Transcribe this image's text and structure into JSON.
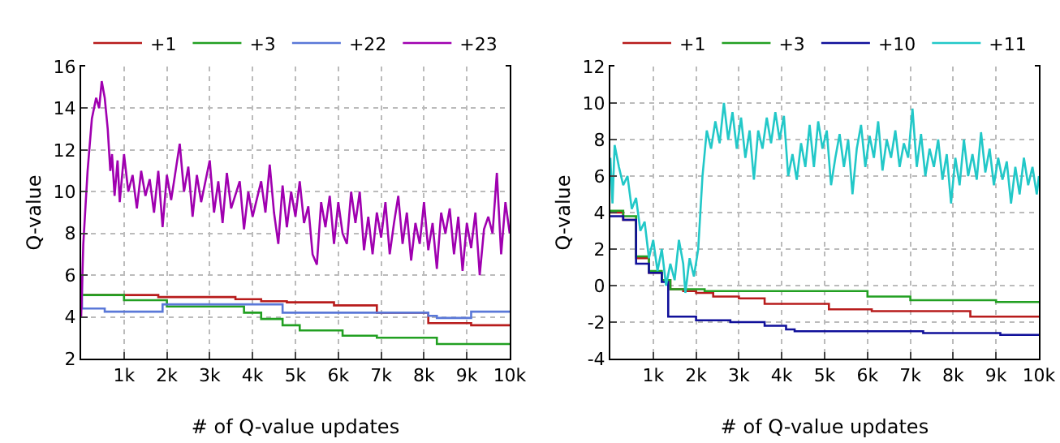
{
  "chart_data": [
    {
      "type": "line",
      "xlabel": "# of Q-value updates",
      "ylabel": "Q-value",
      "xlim": [
        0,
        10000
      ],
      "ylim": [
        2,
        16
      ],
      "xticks": [
        {
          "value": 1000,
          "label": "1k"
        },
        {
          "value": 2000,
          "label": "2k"
        },
        {
          "value": 3000,
          "label": "3k"
        },
        {
          "value": 4000,
          "label": "4k"
        },
        {
          "value": 5000,
          "label": "5k"
        },
        {
          "value": 6000,
          "label": "6k"
        },
        {
          "value": 7000,
          "label": "7k"
        },
        {
          "value": 8000,
          "label": "8k"
        },
        {
          "value": 9000,
          "label": "9k"
        },
        {
          "value": 10000,
          "label": "10k"
        }
      ],
      "yticks": [
        2,
        4,
        6,
        8,
        10,
        12,
        14,
        16
      ],
      "grid": true,
      "legend": "top",
      "marker": "none",
      "line_style": "solid",
      "series": [
        {
          "name": "+1",
          "type": "step",
          "color": "#b81c1c",
          "x": [
            0,
            1800,
            3600,
            4200,
            4800,
            5900,
            6900,
            8100,
            9100,
            10000
          ],
          "values": [
            5.05,
            4.95,
            4.85,
            4.75,
            4.7,
            4.55,
            4.2,
            3.7,
            3.6,
            3.6
          ]
        },
        {
          "name": "+3",
          "type": "step",
          "color": "#22a022",
          "x": [
            0,
            1000,
            2000,
            3800,
            4200,
            4700,
            5100,
            6100,
            6900,
            8300,
            10000
          ],
          "values": [
            5.05,
            4.8,
            4.5,
            4.2,
            3.9,
            3.6,
            3.35,
            3.1,
            3.0,
            2.7,
            2.7
          ]
        },
        {
          "name": "+22",
          "type": "step",
          "color": "#5a78d8",
          "x": [
            0,
            20,
            550,
            1900,
            4700,
            8100,
            8300,
            9100,
            10000
          ],
          "values": [
            6,
            4.4,
            4.25,
            4.6,
            4.2,
            4.05,
            3.95,
            4.25,
            4.25
          ]
        },
        {
          "name": "+23",
          "color": "#a000b0",
          "x": [
            0,
            50,
            150,
            250,
            350,
            420,
            480,
            550,
            620,
            680,
            720,
            780,
            850,
            900,
            1000,
            1100,
            1200,
            1300,
            1400,
            1500,
            1600,
            1700,
            1800,
            1900,
            2000,
            2100,
            2300,
            2400,
            2500,
            2600,
            2700,
            2800,
            3000,
            3100,
            3200,
            3300,
            3400,
            3500,
            3700,
            3800,
            3900,
            4000,
            4200,
            4300,
            4400,
            4500,
            4600,
            4700,
            4800,
            4900,
            5000,
            5100,
            5200,
            5300,
            5400,
            5500,
            5600,
            5700,
            5800,
            5900,
            6000,
            6100,
            6200,
            6300,
            6400,
            6500,
            6600,
            6700,
            6800,
            6900,
            7000,
            7100,
            7200,
            7300,
            7400,
            7500,
            7600,
            7700,
            7800,
            7900,
            8000,
            8100,
            8200,
            8300,
            8400,
            8500,
            8600,
            8700,
            8800,
            8900,
            9000,
            9100,
            9200,
            9300,
            9400,
            9500,
            9600,
            9700,
            9800,
            9900,
            10000
          ],
          "values": [
            4,
            7.5,
            11,
            13.5,
            14.5,
            14,
            15.3,
            14.5,
            13,
            11,
            11.8,
            9.8,
            11.5,
            9.5,
            11.8,
            10,
            10.8,
            9.2,
            11,
            9.8,
            10.6,
            9,
            11,
            8.3,
            10.8,
            9.6,
            12.3,
            10,
            11.2,
            8.8,
            10.8,
            9.5,
            11.5,
            9,
            10.5,
            8.5,
            10.9,
            9.2,
            10.5,
            8.2,
            10,
            8.8,
            10.5,
            9,
            11.3,
            9,
            7.5,
            10.3,
            8.3,
            10,
            8.8,
            10.5,
            8.5,
            9.3,
            7,
            6.5,
            9.5,
            8.3,
            9.8,
            7.5,
            9.5,
            8,
            7.5,
            10,
            8.5,
            10,
            7.2,
            8.8,
            7,
            9,
            7.8,
            9.5,
            7,
            8.5,
            9.8,
            7.5,
            9,
            6.7,
            8.5,
            7.5,
            9.5,
            7.2,
            8.5,
            6.3,
            9,
            8,
            9.2,
            7,
            8.8,
            6.2,
            8.5,
            7.3,
            9,
            6,
            8.2,
            8.8,
            8,
            10.9,
            7,
            9.5,
            8
          ]
        }
      ]
    },
    {
      "type": "line",
      "xlabel": "# of Q-value updates",
      "ylabel": "Q-value",
      "xlim": [
        0,
        10000
      ],
      "ylim": [
        -4,
        12
      ],
      "xticks": [
        {
          "value": 1000,
          "label": "1k"
        },
        {
          "value": 2000,
          "label": "2k"
        },
        {
          "value": 3000,
          "label": "3k"
        },
        {
          "value": 4000,
          "label": "4k"
        },
        {
          "value": 5000,
          "label": "5k"
        },
        {
          "value": 6000,
          "label": "6k"
        },
        {
          "value": 7000,
          "label": "7k"
        },
        {
          "value": 8000,
          "label": "8k"
        },
        {
          "value": 9000,
          "label": "9k"
        },
        {
          "value": 10000,
          "label": "10k"
        }
      ],
      "yticks": [
        -4,
        -2,
        0,
        2,
        4,
        6,
        8,
        10,
        12
      ],
      "grid": true,
      "legend": "top",
      "marker": "none",
      "line_style": "solid",
      "series": [
        {
          "name": "+1",
          "type": "step",
          "color": "#b81c1c",
          "x": [
            0,
            300,
            600,
            900,
            1200,
            1400,
            1700,
            2000,
            2400,
            3000,
            3600,
            5100,
            6100,
            8400,
            10000
          ],
          "values": [
            4,
            3.6,
            1.5,
            0.7,
            0.3,
            -0.2,
            -0.3,
            -0.4,
            -0.6,
            -0.7,
            -1.0,
            -1.3,
            -1.4,
            -1.7,
            -1.7
          ]
        },
        {
          "name": "+3",
          "type": "step",
          "color": "#22a022",
          "x": [
            0,
            300,
            600,
            900,
            1200,
            1400,
            2200,
            6000,
            7000,
            9000,
            10000
          ],
          "values": [
            4.1,
            3.8,
            1.6,
            0.8,
            0.3,
            -0.2,
            -0.3,
            -0.6,
            -0.8,
            -0.9,
            -0.9
          ]
        },
        {
          "name": "+10",
          "type": "step",
          "color": "#10109a",
          "x": [
            0,
            300,
            600,
            900,
            1200,
            1350,
            2000,
            2800,
            3600,
            4100,
            4300,
            7300,
            9100,
            10000
          ],
          "values": [
            3.8,
            3.6,
            1.2,
            0.7,
            0.2,
            -1.7,
            -1.9,
            -2.0,
            -2.2,
            -2.4,
            -2.5,
            -2.6,
            -2.7,
            -2.7
          ]
        },
        {
          "name": "+11",
          "color": "#22c8c8",
          "x": [
            0,
            50,
            100,
            200,
            300,
            400,
            500,
            600,
            700,
            800,
            900,
            1000,
            1100,
            1200,
            1300,
            1400,
            1500,
            1600,
            1700,
            1750,
            1850,
            1950,
            2050,
            2150,
            2250,
            2350,
            2450,
            2550,
            2650,
            2750,
            2850,
            2950,
            3050,
            3150,
            3250,
            3350,
            3450,
            3550,
            3650,
            3750,
            3850,
            3950,
            4050,
            4150,
            4250,
            4350,
            4450,
            4550,
            4650,
            4750,
            4850,
            4950,
            5050,
            5150,
            5250,
            5350,
            5450,
            5550,
            5650,
            5750,
            5850,
            5950,
            6050,
            6150,
            6250,
            6350,
            6450,
            6550,
            6650,
            6750,
            6850,
            6950,
            7050,
            7150,
            7250,
            7350,
            7450,
            7550,
            7650,
            7750,
            7850,
            7950,
            8050,
            8150,
            8250,
            8350,
            8450,
            8550,
            8650,
            8750,
            8850,
            8950,
            9050,
            9150,
            9250,
            9350,
            9450,
            9550,
            9650,
            9750,
            9850,
            9950,
            10000
          ],
          "values": [
            7,
            4.5,
            7.7,
            6.5,
            5.5,
            6,
            4.2,
            4.8,
            3,
            3.5,
            1.5,
            2.5,
            0.8,
            2,
            0,
            1.2,
            0.3,
            2.5,
            1.2,
            -0.4,
            1.5,
            0.5,
            2,
            6,
            8.5,
            7.5,
            9,
            7.8,
            10,
            8,
            9.5,
            7.5,
            9.2,
            7,
            8.5,
            5.8,
            8.5,
            7.5,
            9.2,
            7.8,
            9.5,
            8,
            9.3,
            6,
            7.2,
            5.8,
            7.8,
            6.5,
            8.8,
            6.5,
            9,
            7.5,
            8.5,
            5.5,
            7,
            8.3,
            6.5,
            8,
            5,
            7.5,
            8.8,
            6.5,
            8.2,
            7,
            9,
            6.3,
            8,
            7,
            8.5,
            6.5,
            7.8,
            7,
            9.7,
            6.5,
            8.3,
            6,
            7.5,
            6.5,
            8,
            5.8,
            7.2,
            4.5,
            7,
            5.5,
            8,
            6,
            7.2,
            5.8,
            8.4,
            6.2,
            7.5,
            5.5,
            7,
            5.8,
            6.8,
            4.5,
            6.5,
            5,
            7,
            5.5,
            6.5,
            5,
            6
          ]
        }
      ]
    }
  ]
}
